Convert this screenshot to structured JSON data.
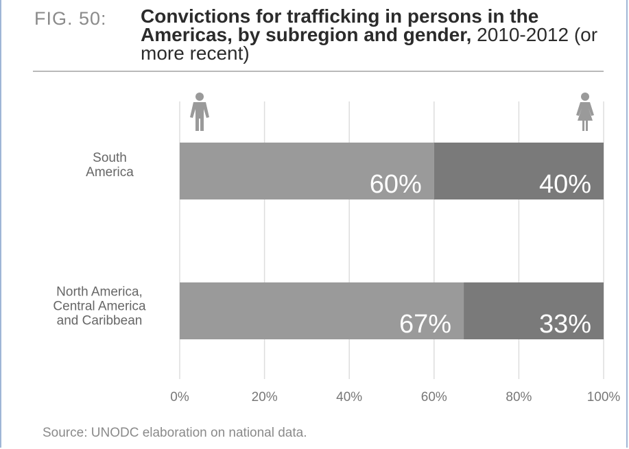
{
  "figure": {
    "label": "FIG. 50:",
    "title_bold": "Convictions for trafficking in persons in the Americas, by subregion and gender,",
    "title_light": "2010-2012 (or more recent)"
  },
  "source": "Source: UNODC elaboration on national data.",
  "icons": {
    "male": "male-figure-icon",
    "female": "female-figure-icon"
  },
  "colors": {
    "male_bar": "#9a9a9a",
    "female_bar": "#7a7a7a",
    "grid": "#dddddd",
    "bar_text": "#ffffff"
  },
  "chart_data": {
    "type": "bar",
    "orientation": "horizontal",
    "stacked": true,
    "percent_scale": true,
    "categories": [
      "South\nAmerica",
      "North America,\nCentral America\nand Caribbean"
    ],
    "series": [
      {
        "values": [
          60,
          67
        ],
        "labels": [
          "60%",
          "67%"
        ],
        "icon": "male-figure-icon"
      },
      {
        "values": [
          40,
          33
        ],
        "labels": [
          "40%",
          "33%"
        ],
        "icon": "female-figure-icon"
      }
    ],
    "xlim": [
      0,
      100
    ],
    "xticks": [
      0,
      20,
      40,
      60,
      80,
      100
    ],
    "xtick_labels": [
      "0%",
      "20%",
      "40%",
      "60%",
      "80%",
      "100%"
    ],
    "grid": true
  }
}
